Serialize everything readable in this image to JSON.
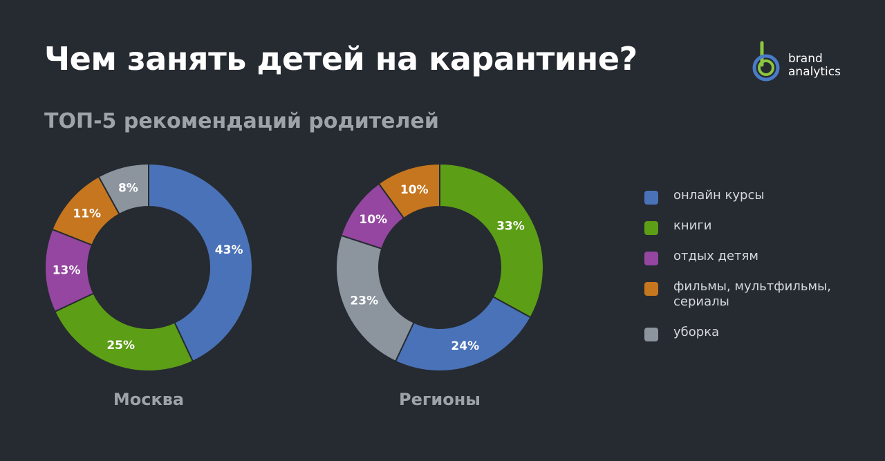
{
  "header": {
    "title": "Чем занять детей на карантине?",
    "subtitle": "ТОП-5 рекомендаций родителей"
  },
  "logo": {
    "line1": "brand",
    "line2": "analytics",
    "colors": [
      "#4a7bc8",
      "#8cc63f"
    ]
  },
  "chart_data": [
    {
      "type": "pie",
      "title": "Москва",
      "categories": [
        "онлайн курсы",
        "книги",
        "отдых детям",
        "фильмы, мультфильмы, сериалы",
        "уборка"
      ],
      "values": [
        43,
        25,
        13,
        11,
        8
      ],
      "labels": [
        "43%",
        "25%",
        "13%",
        "11%",
        "8%"
      ],
      "order": [
        "онлайн курсы",
        "книги",
        "отдых детям",
        "фильмы, мультфильмы, сериалы",
        "уборка"
      ]
    },
    {
      "type": "pie",
      "title": "Регионы",
      "categories": [
        "книги",
        "онлайн курсы",
        "уборка",
        "отдых детям",
        "фильмы, мультфильмы, сериалы"
      ],
      "values": [
        33,
        24,
        23,
        10,
        10
      ],
      "labels": [
        "33%",
        "24%",
        "23%",
        "10%",
        "10%"
      ]
    }
  ],
  "legend": [
    {
      "label": "онлайн курсы",
      "color": "#4a72b8"
    },
    {
      "label": "книги",
      "color": "#5c9e16"
    },
    {
      "label": "отдых детям",
      "color": "#9446a0"
    },
    {
      "label": "фильмы, мультфильмы, сериалы",
      "color": "#c5761e"
    },
    {
      "label": "уборка",
      "color": "#8c949e"
    }
  ]
}
